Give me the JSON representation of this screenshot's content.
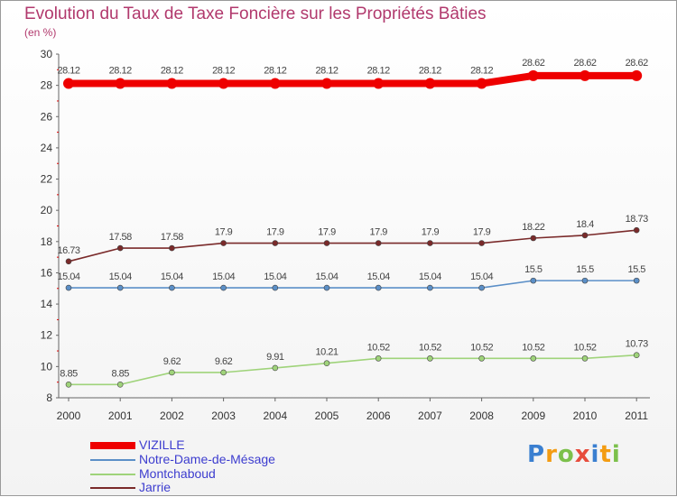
{
  "chart_data": {
    "type": "line",
    "title": "Evolution du Taux de Taxe Foncière sur les Propriétés Bâties",
    "ylabel": "(en %)",
    "xlabel": "",
    "ylim": [
      8,
      30
    ],
    "yticks": [
      "8",
      "10",
      "12",
      "14",
      "16",
      "18",
      "20",
      "22",
      "24",
      "26",
      "28",
      "30"
    ],
    "categories": [
      "2000",
      "2001",
      "2002",
      "2003",
      "2004",
      "2005",
      "2006",
      "2007",
      "2008",
      "2009",
      "2010",
      "2011"
    ],
    "series": [
      {
        "name": "VIZILLE",
        "color": "#ee0000",
        "values": [
          28.12,
          28.12,
          28.12,
          28.12,
          28.12,
          28.12,
          28.12,
          28.12,
          28.12,
          28.62,
          28.62,
          28.62
        ],
        "labels": [
          "28.12",
          "28.12",
          "28.12",
          "28.12",
          "28.12",
          "28.12",
          "28.12",
          "28.12",
          "28.12",
          "28.62",
          "28.62",
          "28.62"
        ]
      },
      {
        "name": "Notre-Dame-de-Mésage",
        "color": "#5b8fc7",
        "values": [
          15.04,
          15.04,
          15.04,
          15.04,
          15.04,
          15.04,
          15.04,
          15.04,
          15.04,
          15.5,
          15.5,
          15.5
        ],
        "labels": [
          "15.04",
          "15.04",
          "15.04",
          "15.04",
          "15.04",
          "15.04",
          "15.04",
          "15.04",
          "15.04",
          "15.5",
          "15.5",
          "15.5"
        ]
      },
      {
        "name": "Montchaboud",
        "color": "#9fd37a",
        "values": [
          8.85,
          8.85,
          9.62,
          9.62,
          9.91,
          10.21,
          10.52,
          10.52,
          10.52,
          10.52,
          10.52,
          10.73
        ],
        "labels": [
          "8.85",
          "8.85",
          "9.62",
          "9.62",
          "9.91",
          "10.21",
          "10.52",
          "10.52",
          "10.52",
          "10.52",
          "10.52",
          "10.73"
        ]
      },
      {
        "name": "Jarrie",
        "color": "#7a2a2a",
        "values": [
          16.73,
          17.58,
          17.58,
          17.9,
          17.9,
          17.9,
          17.9,
          17.9,
          17.9,
          18.22,
          18.4,
          18.73
        ],
        "labels": [
          "16.73",
          "17.58",
          "17.58",
          "17.9",
          "17.9",
          "17.9",
          "17.9",
          "17.9",
          "17.9",
          "18.22",
          "18.4",
          "18.73"
        ]
      }
    ],
    "legend_position": "bottom-left",
    "grid": false
  },
  "logo": {
    "letters": [
      "P",
      "r",
      "o",
      "x",
      "i",
      "t",
      "i"
    ],
    "colors": [
      "#3a7fd0",
      "#f39c12",
      "#7cc04b",
      "#e74c3c",
      "#3a7fd0",
      "#f39c12",
      "#7cc04b"
    ]
  }
}
